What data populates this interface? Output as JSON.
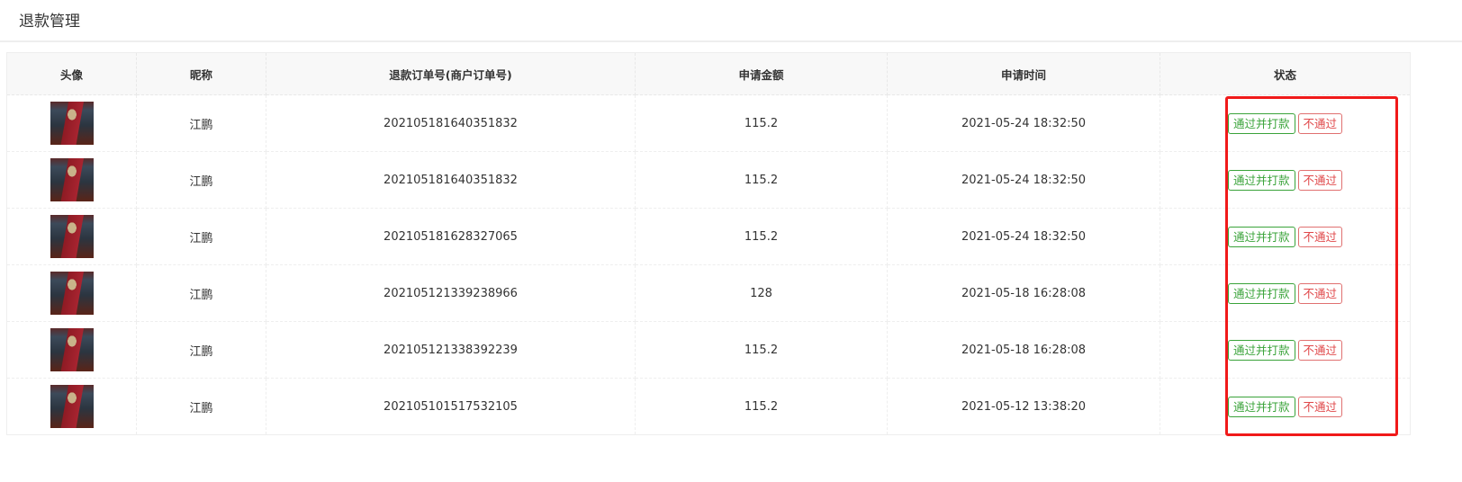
{
  "page_title": "退款管理",
  "columns": [
    "头像",
    "昵称",
    "退款订单号(商户订单号)",
    "申请金额",
    "申请时间",
    "状态"
  ],
  "rows": [
    {
      "nickname": "江鹏",
      "order_no": "202105181640351832",
      "amount": "115.2",
      "time": "2021-05-24 18:32:50"
    },
    {
      "nickname": "江鹏",
      "order_no": "202105181640351832",
      "amount": "115.2",
      "time": "2021-05-24 18:32:50"
    },
    {
      "nickname": "江鹏",
      "order_no": "202105181628327065",
      "amount": "115.2",
      "time": "2021-05-24 18:32:50"
    },
    {
      "nickname": "江鹏",
      "order_no": "202105121339238966",
      "amount": "128",
      "time": "2021-05-18 16:28:08"
    },
    {
      "nickname": "江鹏",
      "order_no": "202105121338392239",
      "amount": "115.2",
      "time": "2021-05-18 16:28:08"
    },
    {
      "nickname": "江鹏",
      "order_no": "202105101517532105",
      "amount": "115.2",
      "time": "2021-05-12 13:38:20"
    }
  ],
  "actions": {
    "approve": "通过并打款",
    "reject": "不通过"
  },
  "colors": {
    "approve": "#3aa33a",
    "reject": "#e0484a",
    "highlight": "#f01a1a"
  }
}
